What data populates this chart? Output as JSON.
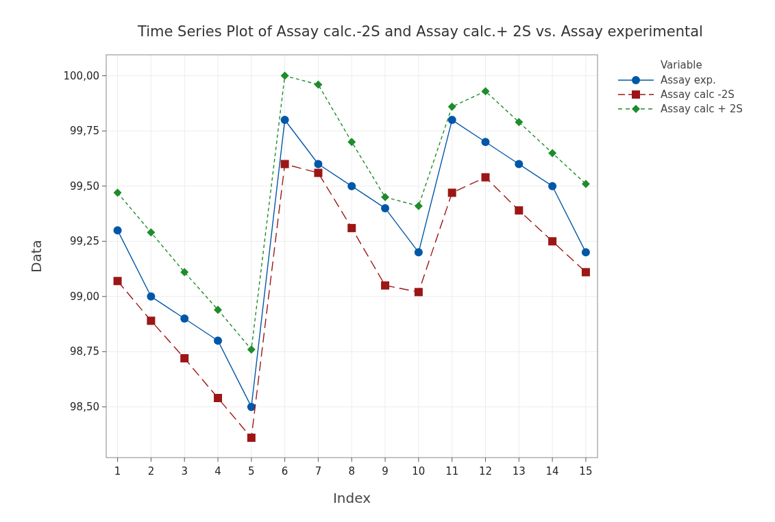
{
  "chart_data": {
    "type": "line",
    "title": "Time Series Plot of Assay calc.-2S and Assay calc.+ 2S   vs.  Assay experimental",
    "xlabel": "Index",
    "ylabel": "Data",
    "legend_title": "Variable",
    "x": [
      1,
      2,
      3,
      4,
      5,
      6,
      7,
      8,
      9,
      10,
      11,
      12,
      13,
      14,
      15
    ],
    "xlim": [
      0.66,
      15.35
    ],
    "xticks": [
      1,
      2,
      3,
      4,
      5,
      6,
      7,
      8,
      9,
      10,
      11,
      12,
      13,
      14,
      15
    ],
    "ylim": [
      98.27,
      100.095
    ],
    "yticks": [
      {
        "value": 98.5,
        "label": "98,50"
      },
      {
        "value": 98.75,
        "label": "98,75"
      },
      {
        "value": 99,
        "label": "99,00"
      },
      {
        "value": 99.25,
        "label": "99,25"
      },
      {
        "value": 99.5,
        "label": "99,50"
      },
      {
        "value": 99.75,
        "label": "99,75"
      },
      {
        "value": 100,
        "label": "100,00"
      }
    ],
    "grid": true,
    "legend": "top right",
    "series": [
      {
        "name": "Assay exp.",
        "color": "#0057a8",
        "marker": "circle",
        "line_style": "solid",
        "values": [
          99.3,
          99.0,
          98.9,
          98.8,
          98.5,
          99.8,
          99.6,
          99.5,
          99.4,
          99.2,
          99.8,
          99.7,
          99.6,
          99.5,
          99.2
        ]
      },
      {
        "name": "Assay calc -2S",
        "color": "#9c1616",
        "marker": "square",
        "line_style": "dashed",
        "values": [
          99.07,
          98.89,
          98.72,
          98.54,
          98.36,
          99.6,
          99.56,
          99.31,
          99.05,
          99.02,
          99.47,
          99.54,
          99.39,
          99.25,
          99.11
        ]
      },
      {
        "name": "Assay calc + 2S",
        "color": "#1e8c2a",
        "marker": "diamond",
        "line_style": "dotted",
        "values": [
          99.47,
          99.29,
          99.11,
          98.94,
          98.76,
          100.0,
          99.96,
          99.7,
          99.45,
          99.41,
          99.86,
          99.93,
          99.79,
          99.65,
          99.51
        ]
      }
    ]
  }
}
